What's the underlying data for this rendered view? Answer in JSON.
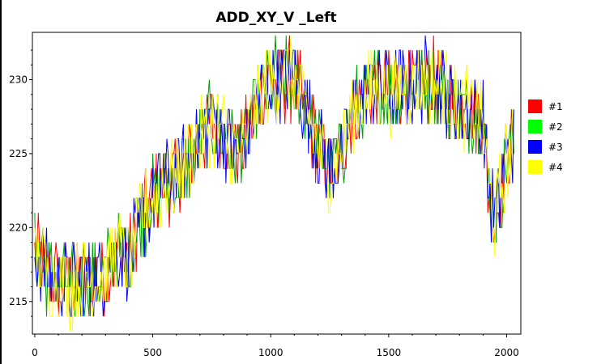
{
  "chart_data": {
    "type": "line",
    "title": "ADD_XY_V _Left",
    "xlabel": "",
    "ylabel": "",
    "xlim": [
      -10,
      2060
    ],
    "ylim": [
      212.8,
      233.2
    ],
    "xticks": [
      0,
      500,
      1000,
      1500,
      2000
    ],
    "yticks": [
      215,
      220,
      225,
      230
    ],
    "grid": false,
    "legend_position": "right",
    "series": [
      {
        "name": "#1",
        "color": "#ff0000"
      },
      {
        "name": "#2",
        "color": "#00a000"
      },
      {
        "name": "#3",
        "color": "#0000ff"
      },
      {
        "name": "#4",
        "color": "#ffff00"
      }
    ],
    "legend_swatch_colors": [
      "#ff0000",
      "#00ff00",
      "#0000ff",
      "#ffff00"
    ],
    "trend": {
      "x": [
        0,
        20,
        50,
        100,
        150,
        200,
        250,
        300,
        350,
        400,
        450,
        500,
        550,
        600,
        650,
        700,
        750,
        800,
        850,
        900,
        950,
        1000,
        1050,
        1100,
        1150,
        1200,
        1250,
        1300,
        1350,
        1400,
        1450,
        1500,
        1550,
        1600,
        1650,
        1700,
        1750,
        1800,
        1850,
        1900,
        1920,
        1950,
        1980,
        2000,
        2030
      ],
      "y": [
        218,
        218,
        217,
        216.5,
        216,
        216.5,
        216.5,
        217,
        218.5,
        218,
        220.5,
        222,
        223,
        223.5,
        224.5,
        226,
        227,
        226.5,
        225,
        226,
        229,
        230,
        230,
        230,
        228,
        225.5,
        224,
        225,
        228,
        229,
        229.5,
        229,
        229.5,
        229.5,
        230,
        230,
        229,
        228,
        228,
        227.5,
        223,
        220.5,
        223,
        224.5,
        226
      ]
    }
  }
}
